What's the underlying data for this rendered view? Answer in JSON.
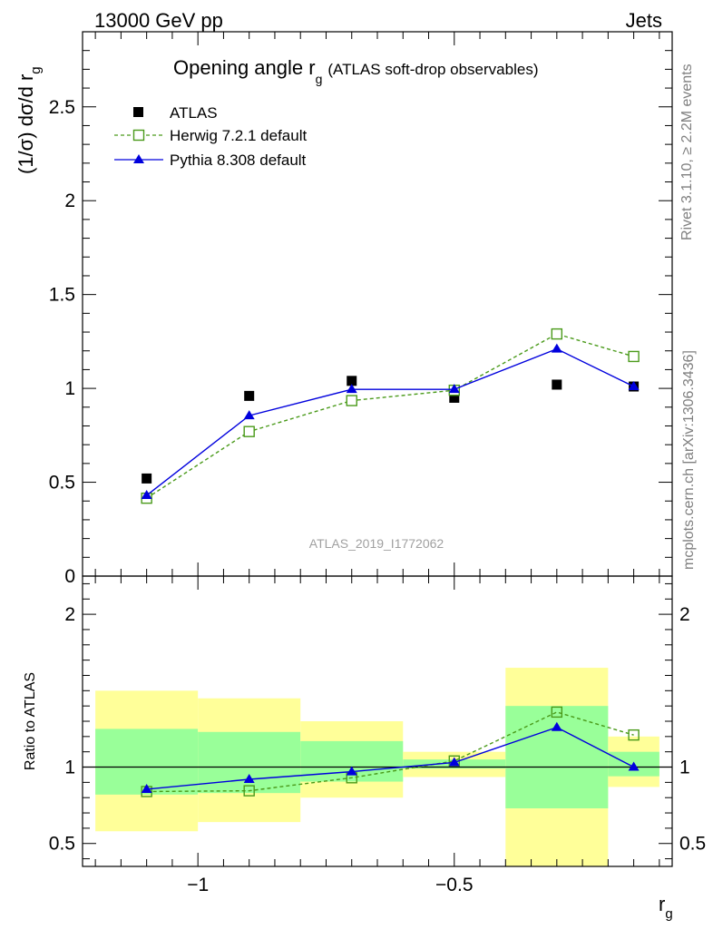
{
  "header": {
    "left": "13000 GeV pp",
    "right": "Jets"
  },
  "side_labels": {
    "rivet": "Rivet 3.1.10, ≥ 2.2M events",
    "mcplots": "mcplots.cern.ch [arXiv:1306.3436]"
  },
  "watermark": "ATLAS_2019_I1772062",
  "colors": {
    "herwig": "#4a9a1a",
    "pythia": "#0000dd",
    "data": "#000000",
    "band_inner": "#99ff99",
    "band_outer": "#ffff99"
  },
  "chart_data": [
    {
      "type": "scatter",
      "panel": "main",
      "title": "Opening angle r",
      "title_sub": "g",
      "title_suffix": "(ATLAS soft-drop observables)",
      "ylabel": "(1/σ) dσ/d r",
      "ylabel_sub": "g",
      "xlim": [
        -1.225,
        -0.075
      ],
      "ylim": [
        0,
        2.9
      ],
      "yticks": [
        {
          "value": 0,
          "label": "0"
        },
        {
          "value": 0.5,
          "label": "0.5"
        },
        {
          "value": 1,
          "label": "1"
        },
        {
          "value": 1.5,
          "label": "1.5"
        },
        {
          "value": 2,
          "label": "2"
        },
        {
          "value": 2.5,
          "label": "2.5"
        }
      ],
      "legend_position": "top-left",
      "x": [
        -1.1,
        -0.9,
        -0.7,
        -0.5,
        -0.3,
        -0.15
      ],
      "series": [
        {
          "name": "ATLAS",
          "style": "data",
          "values": [
            0.52,
            0.96,
            1.04,
            0.95,
            1.02,
            1.01
          ]
        },
        {
          "name": "Herwig 7.2.1 default",
          "style": "herwig",
          "values": [
            0.415,
            0.77,
            0.935,
            0.99,
            1.29,
            1.17
          ]
        },
        {
          "name": "Pythia 8.308 default",
          "style": "pythia",
          "values": [
            0.43,
            0.855,
            0.995,
            0.995,
            1.21,
            1.01
          ]
        }
      ]
    },
    {
      "type": "line",
      "panel": "ratio",
      "ylabel": "Ratio to ATLAS",
      "xlabel": "r",
      "xlabel_sub": "g",
      "xlim": [
        -1.225,
        -0.075
      ],
      "ylim": [
        0.35,
        2.25
      ],
      "xticks": [
        {
          "value": -1,
          "label": "−1"
        },
        {
          "value": -0.5,
          "label": "−0.5"
        }
      ],
      "yticks": [
        {
          "value": 0.5,
          "label": "0.5"
        },
        {
          "value": 1,
          "label": "1"
        },
        {
          "value": 2,
          "label": "2"
        }
      ],
      "bins": [
        {
          "lo": -1.2,
          "hi": -1.0,
          "inner": [
            0.82,
            1.25
          ],
          "outer": [
            0.58,
            1.5
          ]
        },
        {
          "lo": -1.0,
          "hi": -0.8,
          "inner": [
            0.83,
            1.23
          ],
          "outer": [
            0.64,
            1.45
          ]
        },
        {
          "lo": -0.8,
          "hi": -0.6,
          "inner": [
            0.905,
            1.17
          ],
          "outer": [
            0.8,
            1.3
          ]
        },
        {
          "lo": -0.6,
          "hi": -0.4,
          "inner": [
            0.99,
            1.05
          ],
          "outer": [
            0.935,
            1.1
          ]
        },
        {
          "lo": -0.4,
          "hi": -0.2,
          "inner": [
            0.73,
            1.4
          ],
          "outer": [
            0.35,
            1.65
          ]
        },
        {
          "lo": -0.2,
          "hi": -0.1,
          "inner": [
            0.94,
            1.1
          ],
          "outer": [
            0.87,
            1.2
          ]
        }
      ],
      "x": [
        -1.1,
        -0.9,
        -0.7,
        -0.5,
        -0.3,
        -0.15
      ],
      "series": [
        {
          "name": "Herwig 7.2.1 default",
          "style": "herwig",
          "values": [
            0.84,
            0.845,
            0.93,
            1.04,
            1.36,
            1.21
          ]
        },
        {
          "name": "Pythia 8.308 default",
          "style": "pythia",
          "values": [
            0.855,
            0.92,
            0.97,
            1.03,
            1.26,
            1.0
          ]
        }
      ]
    }
  ]
}
